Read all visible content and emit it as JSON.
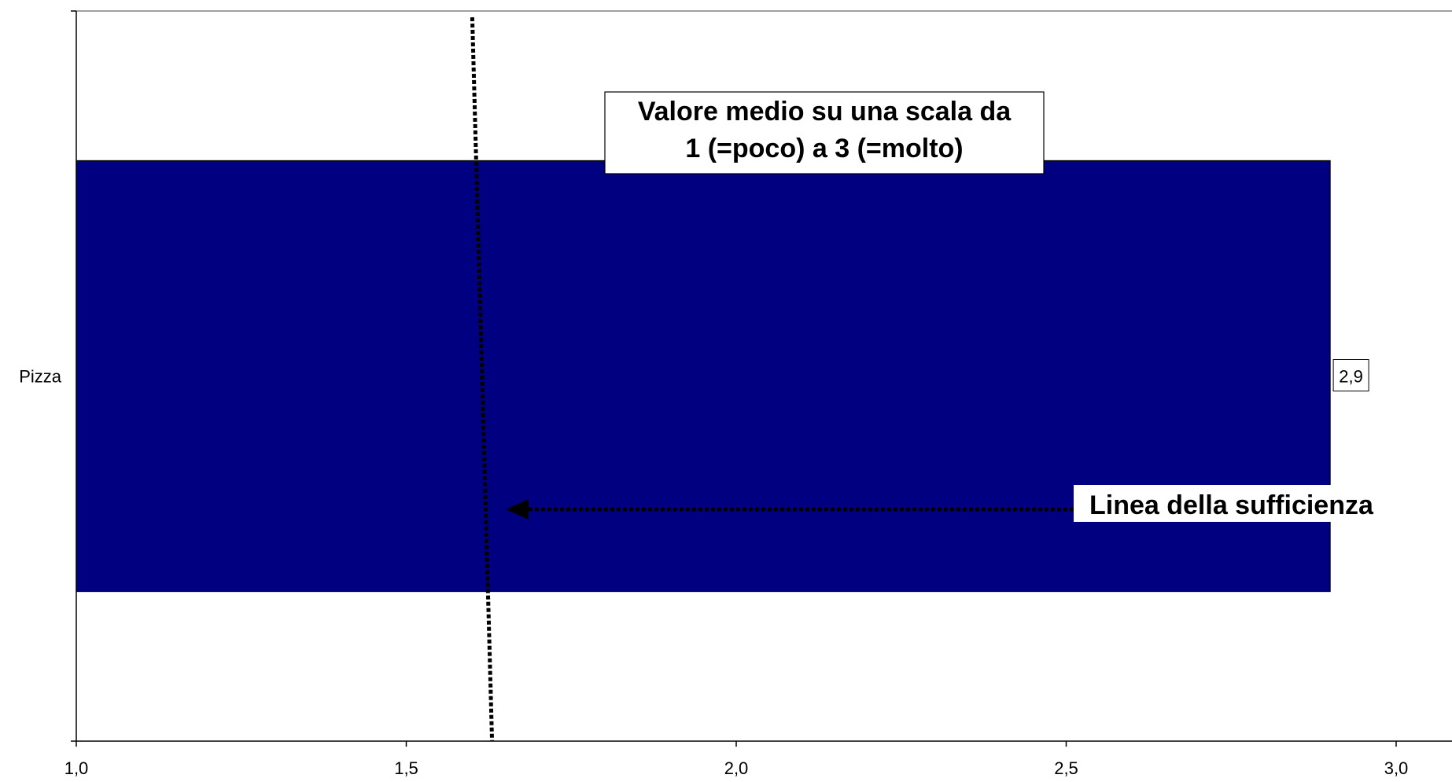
{
  "chart_data": {
    "type": "bar",
    "orientation": "horizontal",
    "categories": [
      "Pizza"
    ],
    "values": [
      2.9
    ],
    "data_labels": [
      "2,9"
    ],
    "xlim": [
      1.0,
      3.0
    ],
    "x_ticks": [
      1.0,
      1.5,
      2.0,
      2.5,
      3.0
    ],
    "x_tick_labels": [
      "1,0",
      "1,5",
      "2,0",
      "2,5",
      "3,0"
    ],
    "bar_color": "#000080",
    "grid": false,
    "legend": "none",
    "annotations": {
      "title_box": [
        "Valore medio su una scala da",
        "1 (=poco) a 3 (=molto)"
      ],
      "reference_line": {
        "label": "Linea della sufficienza",
        "value_top": 1.6,
        "value_bottom": 1.63,
        "style": "dotted"
      }
    }
  }
}
